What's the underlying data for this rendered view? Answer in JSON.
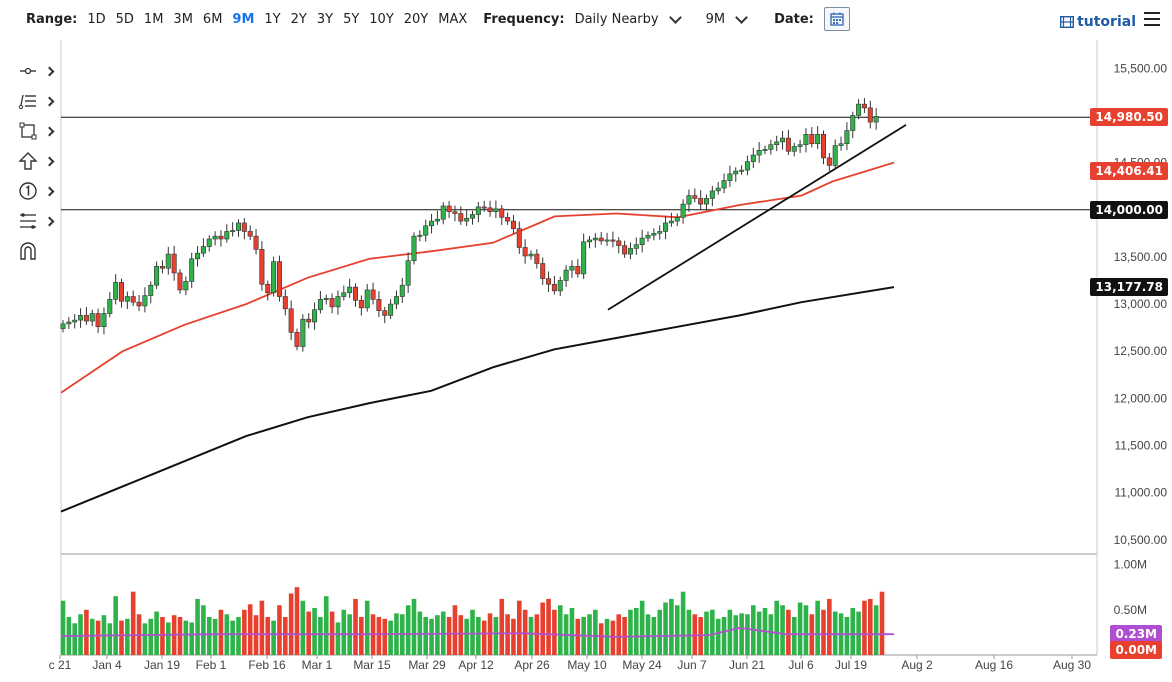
{
  "toolbar": {
    "range_label": "Range:",
    "ranges": [
      "1D",
      "5D",
      "1M",
      "3M",
      "6M",
      "9M",
      "1Y",
      "2Y",
      "3Y",
      "5Y",
      "10Y",
      "20Y",
      "MAX"
    ],
    "active_range": "9M",
    "frequency_label": "Frequency:",
    "frequency_value": "Daily Nearby",
    "period_value": "9M",
    "date_label": "Date:",
    "tutorial_label": "tutorial",
    "icons": [
      "calendar-icon",
      "film-icon",
      "menu-icon"
    ]
  },
  "drawing_tools": [
    "line-tool-icon",
    "list-tool-icon",
    "rectangle-tool-icon",
    "arrow-up-tool-icon",
    "number-marker-tool-icon",
    "fib-tool-icon",
    "magnet-tool-icon"
  ],
  "chart_data": {
    "type": "candlestick",
    "title": "",
    "x_ticks": [
      "c 21",
      "Jan 4",
      "Jan 19",
      "Feb 1",
      "Feb 16",
      "Mar 1",
      "Mar 15",
      "Mar 29",
      "Apr 12",
      "Apr 26",
      "May 10",
      "May 24",
      "Jun 7",
      "Jun 21",
      "Jul 6",
      "Jul 19",
      "Aug 2",
      "Aug 16",
      "Aug 30"
    ],
    "y_ticks": [
      "15,500.00",
      "15,000.00",
      "14,500.00",
      "14,000.00",
      "13,500.00",
      "13,000.00",
      "12,500.00",
      "12,000.00",
      "11,500.00",
      "11,000.00",
      "10,500.00"
    ],
    "y_tick_values": [
      15500,
      15000,
      14500,
      14000,
      13500,
      13000,
      12500,
      12000,
      11500,
      11000,
      10500
    ],
    "ylim": [
      10350,
      15800
    ],
    "horizontal_lines": [
      14980.5,
      14000
    ],
    "price_labels": [
      {
        "text": "14,980.50",
        "value": 14980.5,
        "color": "#e8402f"
      },
      {
        "text": "14,406.41",
        "value": 14406.41,
        "color": "#e8402f"
      },
      {
        "text": "14,000.00",
        "value": 14000,
        "color": "#111111"
      },
      {
        "text": "13,177.78",
        "value": 13177.78,
        "color": "#111111"
      }
    ],
    "closes": [
      12790,
      12810,
      12830,
      12880,
      12820,
      12900,
      12760,
      12900,
      13050,
      13230,
      13030,
      13080,
      13020,
      12980,
      13090,
      13200,
      13400,
      13380,
      13530,
      13330,
      13150,
      13240,
      13480,
      13540,
      13610,
      13690,
      13720,
      13690,
      13770,
      13780,
      13860,
      13770,
      13720,
      13580,
      13210,
      13120,
      13450,
      13080,
      12950,
      12700,
      12550,
      12840,
      12810,
      12940,
      13050,
      13060,
      12970,
      13080,
      13120,
      13180,
      13040,
      12960,
      13150,
      13050,
      12930,
      12880,
      13000,
      13080,
      13200,
      13460,
      13720,
      13730,
      13830,
      13880,
      13900,
      14040,
      13980,
      13960,
      13880,
      13910,
      13950,
      14030,
      14020,
      13980,
      14010,
      13920,
      13880,
      13800,
      13600,
      13510,
      13530,
      13430,
      13270,
      13210,
      13140,
      13250,
      13360,
      13400,
      13320,
      13660,
      13680,
      13700,
      13670,
      13680,
      13670,
      13620,
      13530,
      13590,
      13630,
      13700,
      13730,
      13750,
      13770,
      13860,
      13880,
      13920,
      14060,
      14150,
      14120,
      14060,
      14120,
      14200,
      14230,
      14310,
      14380,
      14410,
      14420,
      14510,
      14580,
      14630,
      14640,
      14690,
      14720,
      14760,
      14620,
      14670,
      14690,
      14800,
      14700,
      14800,
      14550,
      14470,
      14680,
      14700,
      14840,
      15000,
      15120,
      15080,
      14930,
      14990
    ],
    "opens": [
      12740,
      12790,
      12810,
      12830,
      12880,
      12820,
      12900,
      12760,
      12900,
      13050,
      13230,
      13030,
      13080,
      13020,
      12980,
      13090,
      13200,
      13400,
      13380,
      13530,
      13330,
      13150,
      13240,
      13480,
      13540,
      13610,
      13690,
      13720,
      13690,
      13770,
      13780,
      13860,
      13770,
      13720,
      13580,
      13210,
      13120,
      13450,
      13080,
      12950,
      12700,
      12550,
      12840,
      12810,
      12940,
      13050,
      13060,
      12970,
      13080,
      13120,
      13180,
      13040,
      12960,
      13150,
      13050,
      12930,
      12880,
      13000,
      13080,
      13200,
      13460,
      13720,
      13730,
      13830,
      13880,
      13900,
      14040,
      13980,
      13960,
      13880,
      13910,
      13950,
      14030,
      14020,
      13980,
      14010,
      13920,
      13880,
      13800,
      13600,
      13510,
      13530,
      13430,
      13270,
      13210,
      13140,
      13250,
      13360,
      13400,
      13320,
      13660,
      13680,
      13700,
      13670,
      13680,
      13670,
      13620,
      13530,
      13590,
      13630,
      13700,
      13730,
      13750,
      13770,
      13860,
      13880,
      13920,
      14060,
      14150,
      14120,
      14060,
      14120,
      14200,
      14230,
      14310,
      14380,
      14410,
      14420,
      14510,
      14580,
      14630,
      14640,
      14690,
      14720,
      14760,
      14620,
      14670,
      14690,
      14800,
      14700,
      14800,
      14550,
      14470,
      14680,
      14700,
      14840,
      15000,
      15120,
      15080,
      14930
    ],
    "sma50_points": [
      [
        0,
        12060
      ],
      [
        40,
        12500
      ],
      [
        80,
        12780
      ],
      [
        120,
        13000
      ],
      [
        160,
        13280
      ],
      [
        200,
        13480
      ],
      [
        240,
        13560
      ],
      [
        280,
        13650
      ],
      [
        320,
        13930
      ],
      [
        360,
        13960
      ],
      [
        400,
        13920
      ],
      [
        440,
        14050
      ],
      [
        480,
        14150
      ],
      [
        500,
        14300
      ],
      [
        540,
        14500
      ]
    ],
    "sma200_points": [
      [
        0,
        10800
      ],
      [
        60,
        11200
      ],
      [
        120,
        11600
      ],
      [
        160,
        11800
      ],
      [
        200,
        11950
      ],
      [
        240,
        12080
      ],
      [
        280,
        12330
      ],
      [
        320,
        12520
      ],
      [
        360,
        12640
      ],
      [
        400,
        12760
      ],
      [
        440,
        12880
      ],
      [
        480,
        13020
      ],
      [
        540,
        13180
      ]
    ],
    "trendline_points": [
      [
        2,
        12940
      ],
      [
        114,
        14900
      ]
    ],
    "volume": {
      "y_ticks": [
        "1.00M",
        "0.50M"
      ],
      "y_tick_values": [
        1.0,
        0.5
      ],
      "ylim": [
        0,
        1.05
      ],
      "labels": [
        {
          "text": "0.23M",
          "value": 0.23,
          "color": "#b04ed1"
        },
        {
          "text": "0.00M",
          "value": 0.0,
          "color": "#e8402f"
        }
      ],
      "values": [
        0.6,
        0.42,
        0.35,
        0.45,
        0.5,
        0.4,
        0.38,
        0.44,
        0.35,
        0.65,
        0.38,
        0.4,
        0.7,
        0.45,
        0.35,
        0.4,
        0.48,
        0.42,
        0.36,
        0.44,
        0.42,
        0.38,
        0.36,
        0.62,
        0.55,
        0.42,
        0.4,
        0.5,
        0.45,
        0.38,
        0.42,
        0.5,
        0.56,
        0.44,
        0.6,
        0.42,
        0.38,
        0.55,
        0.42,
        0.68,
        0.75,
        0.6,
        0.48,
        0.52,
        0.42,
        0.65,
        0.48,
        0.36,
        0.5,
        0.45,
        0.62,
        0.42,
        0.6,
        0.45,
        0.42,
        0.4,
        0.38,
        0.46,
        0.45,
        0.55,
        0.62,
        0.48,
        0.42,
        0.4,
        0.44,
        0.48,
        0.42,
        0.55,
        0.44,
        0.4,
        0.5,
        0.42,
        0.38,
        0.46,
        0.42,
        0.62,
        0.45,
        0.4,
        0.6,
        0.5,
        0.42,
        0.45,
        0.58,
        0.62,
        0.5,
        0.55,
        0.45,
        0.52,
        0.4,
        0.42,
        0.45,
        0.5,
        0.35,
        0.4,
        0.38,
        0.45,
        0.42,
        0.5,
        0.52,
        0.6,
        0.45,
        0.42,
        0.5,
        0.58,
        0.62,
        0.55,
        0.7,
        0.5,
        0.45,
        0.42,
        0.48,
        0.5,
        0.4,
        0.42,
        0.5,
        0.44,
        0.46,
        0.45,
        0.55,
        0.48,
        0.52,
        0.45,
        0.6,
        0.55,
        0.5,
        0.42,
        0.58,
        0.55,
        0.45,
        0.6,
        0.5,
        0.62,
        0.48,
        0.46,
        0.42,
        0.52,
        0.48,
        0.6,
        0.62,
        0.55,
        0.7
      ],
      "avg_points": [
        [
          0,
          0.21
        ],
        [
          100,
          0.23
        ],
        [
          200,
          0.23
        ],
        [
          300,
          0.24
        ],
        [
          360,
          0.2
        ],
        [
          420,
          0.22
        ],
        [
          440,
          0.3
        ],
        [
          470,
          0.23
        ],
        [
          540,
          0.23
        ]
      ]
    },
    "colors": {
      "up": "#2eb34a",
      "down": "#e8402f",
      "sma50": "#e8402f",
      "sma200": "#111111",
      "vol_avg": "#b04ed1"
    }
  }
}
